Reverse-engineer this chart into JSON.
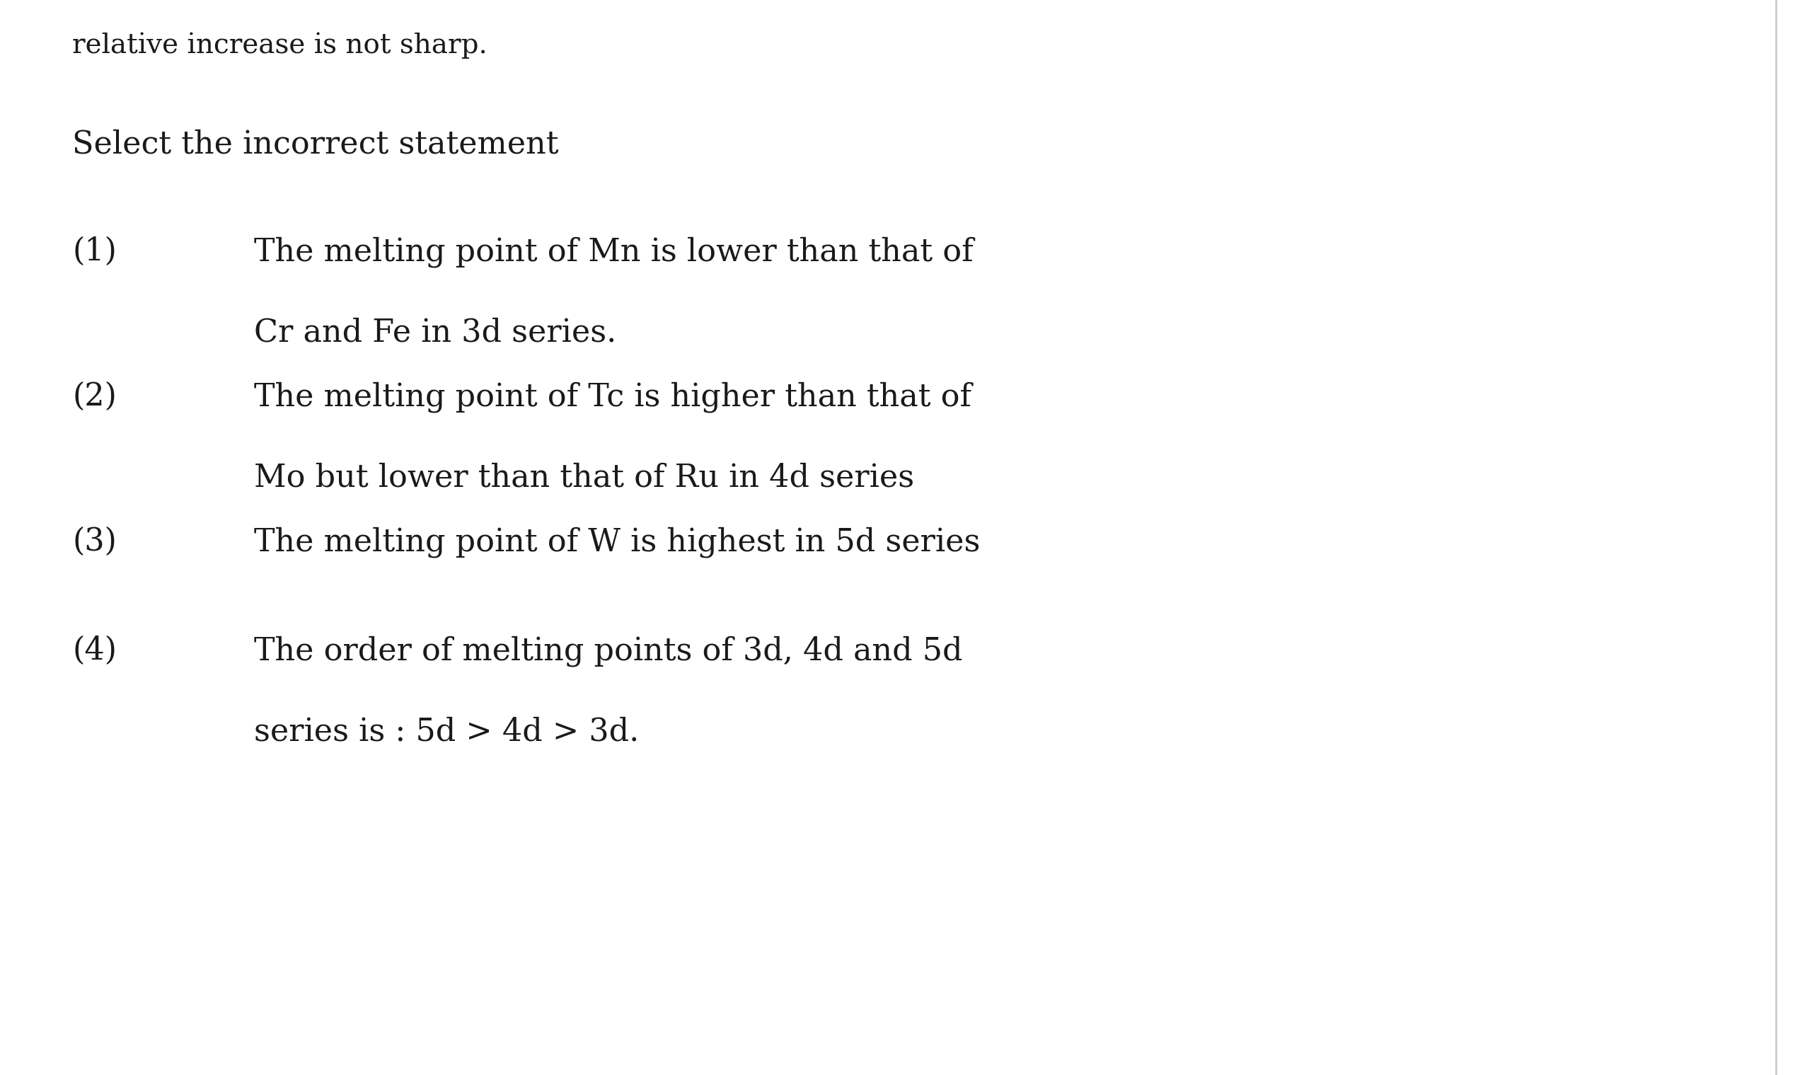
{
  "background_color": "#ffffff",
  "top_text": "relative increase is not sharp.",
  "question": "Select the incorrect statement",
  "items": [
    {
      "number": "(1)",
      "line1": "The melting point of Mn is lower than that of",
      "line2": "Cr and Fe in 3d series."
    },
    {
      "number": "(2)",
      "line1": "The melting point of Tc is higher than that of",
      "line2": "Mo but lower than that of Ru in 4d series"
    },
    {
      "number": "(3)",
      "line1": "The melting point of W is highest in 5d series",
      "line2": null
    },
    {
      "number": "(4)",
      "line1": "The order of melting points of 3d, 4d and 5d",
      "line2": "series is : 5d > 4d > 3d."
    }
  ],
  "font_size_top": 28,
  "font_size_question": 32,
  "font_size_items": 32,
  "text_color": "#1a1a1a",
  "font_family": "DejaVu Serif"
}
